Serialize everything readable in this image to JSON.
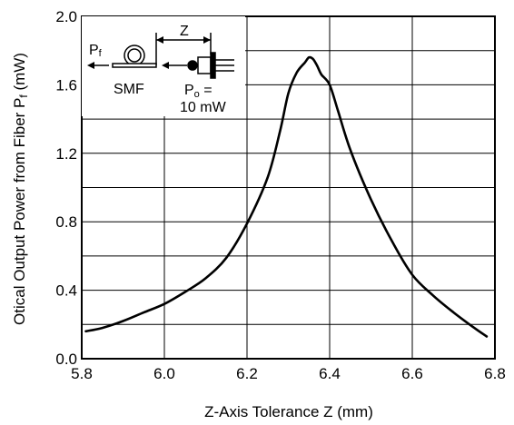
{
  "chart_data": {
    "type": "line",
    "xlabel": "Z-Axis Tolerance  Z (mm)",
    "ylabel": "Otical Output Power from Fiber  P",
    "ylabel_sub": "f",
    "ylabel_unit": " (mW)",
    "xlim": [
      5.8,
      6.8
    ],
    "ylim": [
      0.0,
      2.0
    ],
    "x_ticks": [
      "5.8",
      "6.0",
      "6.2",
      "6.4",
      "6.6",
      "6.8"
    ],
    "y_ticks": [
      "0.0",
      "0.4",
      "0.8",
      "1.2",
      "1.6",
      "2.0"
    ],
    "grid": true,
    "series": [
      {
        "color": "#000000",
        "x": [
          5.81,
          5.85,
          5.9,
          5.95,
          6.0,
          6.05,
          6.1,
          6.15,
          6.2,
          6.25,
          6.28,
          6.3,
          6.32,
          6.34,
          6.35,
          6.36,
          6.37,
          6.38,
          6.4,
          6.42,
          6.45,
          6.5,
          6.55,
          6.6,
          6.65,
          6.7,
          6.75,
          6.78
        ],
        "y": [
          0.16,
          0.18,
          0.22,
          0.27,
          0.32,
          0.39,
          0.47,
          0.59,
          0.79,
          1.06,
          1.33,
          1.55,
          1.67,
          1.73,
          1.76,
          1.75,
          1.71,
          1.66,
          1.6,
          1.45,
          1.22,
          0.93,
          0.69,
          0.49,
          0.37,
          0.27,
          0.18,
          0.13
        ]
      }
    ],
    "inset": {
      "z_label": "Z",
      "pf_label": "P",
      "pf_sub": "f",
      "smf_label": "SMF",
      "po_label": "P",
      "po_sub": "o",
      "po_eq": " =",
      "power_label": "10 mW"
    }
  }
}
